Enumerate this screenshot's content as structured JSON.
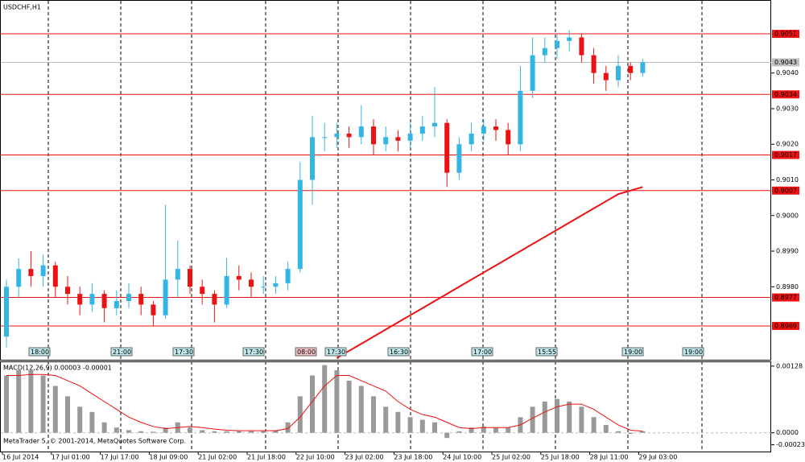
{
  "chart_data": [
    {
      "type": "candlestick",
      "title": "USDCHF,H1",
      "categories": [
        "16 Jul 2014",
        null,
        null,
        null,
        "17 Jul 01:00",
        null,
        null,
        null,
        "17 Jul 17:00",
        null,
        null,
        null,
        "18 Jul 09:00",
        null,
        null,
        null,
        "21 Jul 02:00",
        null,
        null,
        null,
        "21 Jul 18:00",
        null,
        null,
        null,
        "22 Jul 10:00",
        null,
        null,
        null,
        "23 Jul 02:00",
        null,
        null,
        null,
        "23 Jul 18:00",
        null,
        null,
        null,
        "24 Jul 10:00",
        null,
        null,
        null,
        "25 Jul 02:00",
        null,
        null,
        null,
        "25 Jul 18:00",
        null,
        null,
        null,
        "28 Jul 11:00",
        null,
        null,
        null,
        "29 Jul 03:00"
      ],
      "open": [
        0.8966,
        0.898,
        0.8985,
        0.8983,
        0.8986,
        0.898,
        0.8978,
        0.8975,
        0.8978,
        0.8974,
        0.8976,
        0.8978,
        0.8975,
        0.8972,
        0.8982,
        0.8985,
        0.898,
        0.8978,
        0.8975,
        0.8983,
        0.8982,
        0.898,
        0.898,
        0.8981,
        0.8985,
        0.901,
        0.9022,
        0.9022,
        0.9023,
        0.9022,
        0.9025,
        0.902,
        0.9022,
        0.9021,
        0.9023,
        0.9025,
        0.9026,
        0.9012,
        0.902,
        0.9023,
        0.9025,
        0.9024,
        0.902,
        0.9035,
        0.9045,
        0.9047,
        0.9049,
        0.905,
        0.9045,
        0.904,
        0.9038,
        0.9042,
        0.904
      ],
      "high": [
        0.8982,
        0.8988,
        0.899,
        0.8989,
        0.8987,
        0.8983,
        0.898,
        0.8981,
        0.8979,
        0.8979,
        0.8981,
        0.898,
        0.8976,
        0.9003,
        0.8993,
        0.8986,
        0.8982,
        0.8979,
        0.8988,
        0.8986,
        0.8984,
        0.8983,
        0.8983,
        0.8987,
        0.9015,
        0.9028,
        0.9026,
        0.9026,
        0.9025,
        0.9031,
        0.9027,
        0.9025,
        0.9024,
        0.9026,
        0.9028,
        0.9036,
        0.9027,
        0.9022,
        0.9026,
        0.9027,
        0.9027,
        0.9026,
        0.9042,
        0.905,
        0.905,
        0.9051,
        0.9052,
        0.9051,
        0.9047,
        0.9042,
        0.9045,
        0.9043,
        0.9044
      ],
      "low": [
        0.8963,
        0.8977,
        0.898,
        0.898,
        0.8977,
        0.8975,
        0.8972,
        0.8973,
        0.897,
        0.8972,
        0.8974,
        0.8972,
        0.8969,
        0.8971,
        0.8977,
        0.8978,
        0.8975,
        0.897,
        0.8974,
        0.8979,
        0.8977,
        0.8978,
        0.8978,
        0.8979,
        0.8984,
        0.9003,
        0.9018,
        0.9019,
        0.9019,
        0.902,
        0.9017,
        0.9018,
        0.9018,
        0.9019,
        0.9021,
        0.9022,
        0.9008,
        0.901,
        0.9018,
        0.9021,
        0.9021,
        0.9017,
        0.9018,
        0.9033,
        0.9043,
        0.9044,
        0.9046,
        0.9043,
        0.9037,
        0.9035,
        0.9036,
        0.9038,
        0.9039
      ],
      "close": [
        0.898,
        0.8985,
        0.8983,
        0.8986,
        0.898,
        0.8978,
        0.8975,
        0.8978,
        0.8974,
        0.8976,
        0.8978,
        0.8975,
        0.8972,
        0.8982,
        0.8985,
        0.898,
        0.8978,
        0.8975,
        0.8983,
        0.8982,
        0.898,
        0.898,
        0.8981,
        0.8985,
        0.901,
        0.9022,
        0.9022,
        0.9023,
        0.9022,
        0.9025,
        0.902,
        0.9022,
        0.9021,
        0.9023,
        0.9025,
        0.9026,
        0.9012,
        0.902,
        0.9023,
        0.9025,
        0.9024,
        0.902,
        0.9035,
        0.9045,
        0.9047,
        0.9049,
        0.905,
        0.9045,
        0.904,
        0.9038,
        0.9042,
        0.904,
        0.9043
      ],
      "up_color": "#33b5e5",
      "down_color": "#ee1111",
      "moving_average": {
        "color": "#ee1111",
        "values": [
          null,
          null,
          null,
          null,
          null,
          null,
          null,
          null,
          null,
          null,
          null,
          null,
          null,
          null,
          null,
          null,
          null,
          null,
          null,
          null,
          null,
          null,
          null,
          null,
          null,
          null,
          null,
          0.896,
          0.8962,
          0.8964,
          0.8966,
          0.8968,
          0.897,
          0.8972,
          0.8974,
          0.8976,
          0.8978,
          0.898,
          0.8982,
          0.8984,
          0.8986,
          0.8988,
          0.899,
          0.8992,
          0.8994,
          0.8996,
          0.8998,
          0.9,
          0.9002,
          0.9004,
          0.9006,
          0.9007,
          0.9008
        ]
      },
      "levels": [
        0.9051,
        0.9034,
        0.9017,
        0.9007,
        0.8977,
        0.8969
      ],
      "level_color": "#ee1111",
      "current_price": 0.9043,
      "events": [
        "18:00",
        "21:00",
        "17:30",
        "17:30",
        "08:00",
        "17:30",
        "16:30",
        "17:00",
        "15:55",
        "19:00",
        "19:00"
      ],
      "ylim": [
        0.89595,
        0.90605
      ],
      "yticks": [
        {
          "value": 0.904,
          "label": "0.9040"
        },
        {
          "value": 0.903,
          "label": "0.9030"
        },
        {
          "value": 0.902,
          "label": "0.9020"
        },
        {
          "value": 0.901,
          "label": "0.9010"
        },
        {
          "value": 0.9,
          "label": "0.9000"
        },
        {
          "value": 0.899,
          "label": "0.8990"
        },
        {
          "value": 0.898,
          "label": "0.8980"
        }
      ]
    },
    {
      "type": "macd",
      "title": "MACD(12,26,9) 0.00003 -0.00001",
      "histogram": {
        "color": "#999999",
        "values": [
          0.0011,
          0.0012,
          0.0012,
          0.0011,
          0.0009,
          0.0007,
          0.0005,
          0.0004,
          0.0002,
          0.0001,
          5e-05,
          3e-05,
          2e-05,
          0.0001,
          0.0002,
          0.0001,
          5e-05,
          3e-05,
          3e-05,
          3e-05,
          3e-05,
          3e-05,
          5e-05,
          0.0002,
          0.0007,
          0.0011,
          0.0013,
          0.0012,
          0.001,
          0.0009,
          0.0007,
          0.0005,
          0.0004,
          0.0003,
          0.00025,
          0.0002,
          -0.0001,
          3e-05,
          0.0001,
          0.00012,
          0.0001,
          0.0001,
          0.0003,
          0.0005,
          0.0006,
          0.00065,
          0.0006,
          0.0005,
          0.0003,
          0.00015,
          3e-05,
          -2e-05,
          3e-05
        ]
      },
      "signal": {
        "color": "#ee1111",
        "values": [
          0.0011,
          0.0011,
          0.00112,
          0.00112,
          0.0011,
          0.001,
          0.0009,
          0.00075,
          0.0006,
          0.00045,
          0.0003,
          0.0002,
          0.00012,
          8e-05,
          0.0001,
          0.00012,
          0.0001,
          7e-05,
          5e-05,
          4e-05,
          4e-05,
          4e-05,
          4e-05,
          8e-05,
          0.0003,
          0.0006,
          0.0009,
          0.0011,
          0.0011,
          0.001,
          0.0009,
          0.0008,
          0.0006,
          0.00045,
          0.00035,
          0.0003,
          0.0002,
          0.0001,
          8e-05,
          0.0001,
          0.0001,
          0.0001,
          0.00015,
          0.00028,
          0.0004,
          0.0005,
          0.00055,
          0.00055,
          0.00045,
          0.0003,
          0.00015,
          5e-05,
          3e-05
        ]
      },
      "ylim": [
        -0.00036,
        0.001355
      ],
      "yticks": [
        0.00128,
        {
          "value": 0,
          "label": "0.0000"
        },
        -0.00023
      ],
      "footer": "MetaTrader 5, © 2001-2014, MetaQuotes Software Corp."
    }
  ]
}
